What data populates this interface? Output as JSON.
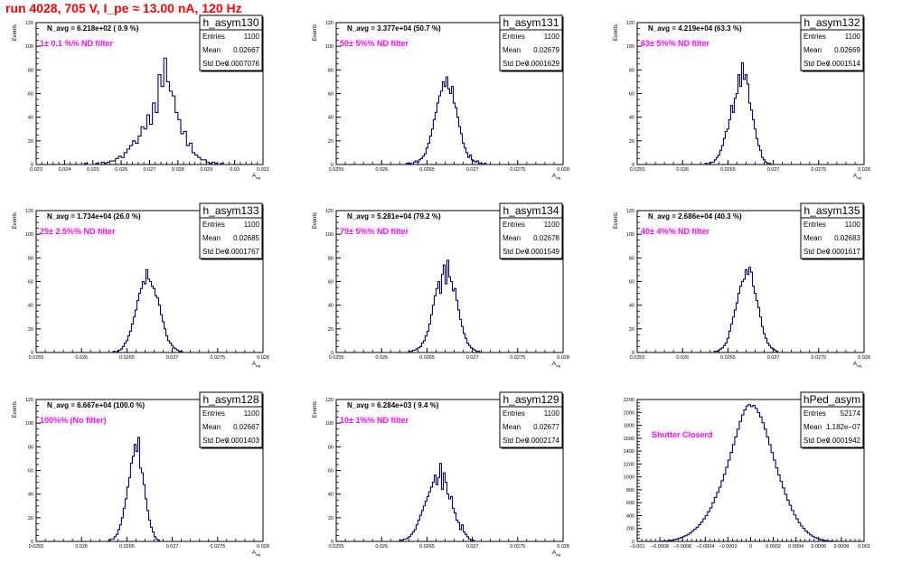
{
  "page_title": "run 4028,   705 V, I_pe ≈ 13.00 nA, 120 Hz",
  "colors": {
    "title": "#ff0000",
    "annotation": "#ff00ff",
    "histogram": "#000080",
    "axis": "#000000"
  },
  "stats_labels": {
    "entries": "Entries",
    "mean": "Mean",
    "std": "Std Dev"
  },
  "chart_data": [
    {
      "type": "histogram",
      "name": "h_asym130",
      "ylabel": "Events",
      "xlabel": "A_{sig}",
      "avg_text": "N_avg = 6.218e+02 ( 0.9 %)",
      "note": "1± 0.1 %% ND filter",
      "entries": "1100",
      "mean": "0.02667",
      "std_dev": "0.0007076",
      "xlim": [
        0.023,
        0.031
      ],
      "ylim": [
        0,
        120
      ],
      "xticks": [
        0.023,
        0.024,
        0.025,
        0.026,
        0.027,
        0.028,
        0.029,
        0.03,
        0.031
      ],
      "xtick_labels": [
        "0.023",
        "0.024",
        "0.025",
        "0.026",
        "0.027",
        "0.028",
        "0.029",
        "0.03",
        "0.031"
      ],
      "yticks": [
        0,
        20,
        40,
        60,
        80,
        100,
        120
      ],
      "ytick_labels": [
        "0",
        "20",
        "40",
        "60",
        "80",
        "100",
        "120"
      ],
      "bin_min": 0.0245,
      "bin_width": 0.0001,
      "counts": [
        0,
        0,
        1,
        0,
        0,
        0,
        1,
        0,
        2,
        1,
        2,
        3,
        3,
        5,
        7,
        6,
        10,
        13,
        16,
        20,
        18,
        24,
        32,
        30,
        42,
        34,
        52,
        44,
        76,
        66,
        90,
        70,
        62,
        58,
        44,
        38,
        26,
        28,
        16,
        18,
        10,
        8,
        6,
        4,
        4,
        2,
        1,
        2,
        1,
        0,
        1
      ]
    },
    {
      "type": "histogram",
      "name": "h_asym131",
      "ylabel": "Events",
      "xlabel": "A_{sig}",
      "avg_text": "N_avg = 3.377e+04 (50.7 %)",
      "note": "50± 5%% ND filter",
      "entries": "1100",
      "mean": "0.02679",
      "std_dev": "0.0001629",
      "xlim": [
        0.0255,
        0.028
      ],
      "ylim": [
        0,
        120
      ],
      "xticks": [
        0.0255,
        0.026,
        0.0265,
        0.027,
        0.0275,
        0.028
      ],
      "xtick_labels": [
        "0.0255",
        "0.026",
        "0.0265",
        "0.027",
        "0.0275",
        "0.028"
      ],
      "yticks": [
        0,
        20,
        40,
        60,
        80,
        100,
        120
      ],
      "ytick_labels": [
        "0",
        "20",
        "40",
        "60",
        "80",
        "100",
        "120"
      ],
      "bin_min": 0.02625,
      "bin_width": 2e-05,
      "counts": [
        0,
        1,
        0,
        1,
        0,
        2,
        3,
        2,
        4,
        5,
        7,
        9,
        14,
        18,
        24,
        30,
        38,
        44,
        52,
        58,
        62,
        70,
        66,
        74,
        64,
        60,
        66,
        52,
        48,
        40,
        32,
        26,
        18,
        14,
        10,
        6,
        8,
        4,
        3,
        2,
        3,
        1,
        1,
        0,
        1
      ]
    },
    {
      "type": "histogram",
      "name": "h_asym132",
      "ylabel": "Events",
      "xlabel": "A_{sig}",
      "avg_text": "N_avg = 4.219e+04 (63.3 %)",
      "note": "63± 5%% ND filter",
      "entries": "1100",
      "mean": "0.02669",
      "std_dev": "0.0001514",
      "xlim": [
        0.0255,
        0.028
      ],
      "ylim": [
        0,
        120
      ],
      "xticks": [
        0.0255,
        0.026,
        0.0265,
        0.027,
        0.0275,
        0.028
      ],
      "xtick_labels": [
        "0.0255",
        "0.026",
        "0.0265",
        "0.027",
        "0.0275",
        "0.028"
      ],
      "yticks": [
        0,
        20,
        40,
        60,
        80,
        100,
        120
      ],
      "ytick_labels": [
        "0",
        "20",
        "40",
        "60",
        "80",
        "100",
        "120"
      ],
      "bin_min": 0.02625,
      "bin_width": 2e-05,
      "counts": [
        1,
        0,
        1,
        2,
        2,
        4,
        6,
        8,
        12,
        16,
        22,
        28,
        30,
        38,
        50,
        44,
        56,
        60,
        76,
        66,
        86,
        72,
        76,
        68,
        52,
        46,
        38,
        30,
        22,
        16,
        12,
        6,
        4,
        2,
        1,
        1
      ]
    },
    {
      "type": "histogram",
      "name": "h_asym133",
      "ylabel": "Events",
      "xlabel": "A_{sig}",
      "avg_text": "N_avg = 1.734e+04 (26.0 %)",
      "note": "25± 2.5%% ND filter",
      "entries": "1100",
      "mean": "0.02685",
      "std_dev": "0.0001767",
      "xlim": [
        0.0255,
        0.028
      ],
      "ylim": [
        0,
        120
      ],
      "xticks": [
        0.0255,
        0.026,
        0.0265,
        0.027,
        0.0275,
        0.028
      ],
      "xtick_labels": [
        "0.0255",
        "0.026",
        "0.0265",
        "0.027",
        "0.0275",
        "0.028"
      ],
      "yticks": [
        0,
        20,
        40,
        60,
        80,
        100,
        120
      ],
      "ytick_labels": [
        "0",
        "20",
        "40",
        "60",
        "80",
        "100",
        "120"
      ],
      "bin_min": 0.02635,
      "bin_width": 2e-05,
      "counts": [
        1,
        0,
        1,
        2,
        3,
        5,
        8,
        10,
        14,
        18,
        24,
        30,
        36,
        44,
        50,
        54,
        60,
        58,
        70,
        62,
        60,
        56,
        54,
        48,
        46,
        40,
        32,
        26,
        20,
        14,
        10,
        8,
        6,
        4,
        3,
        2,
        1,
        1
      ]
    },
    {
      "type": "histogram",
      "name": "h_asym134",
      "ylabel": "Events",
      "xlabel": "A_{sig}",
      "avg_text": "N_avg = 5.281e+04 (79.2 %)",
      "note": "79± 5%% ND filter",
      "entries": "1100",
      "mean": "0.02678",
      "std_dev": "0.0001549",
      "xlim": [
        0.0255,
        0.028
      ],
      "ylim": [
        0,
        120
      ],
      "xticks": [
        0.0255,
        0.026,
        0.0265,
        0.027,
        0.0275,
        0.028
      ],
      "xtick_labels": [
        "0.0255",
        "0.026",
        "0.0265",
        "0.027",
        "0.0275",
        "0.028"
      ],
      "yticks": [
        0,
        20,
        40,
        60,
        80,
        100,
        120
      ],
      "ytick_labels": [
        "0",
        "20",
        "40",
        "60",
        "80",
        "100",
        "120"
      ],
      "bin_min": 0.0263,
      "bin_width": 2e-05,
      "counts": [
        1,
        1,
        2,
        2,
        3,
        4,
        5,
        8,
        10,
        14,
        18,
        24,
        32,
        40,
        48,
        54,
        60,
        50,
        66,
        74,
        58,
        78,
        64,
        60,
        52,
        54,
        44,
        36,
        28,
        22,
        16,
        12,
        8,
        6,
        4,
        3,
        2,
        1,
        1
      ]
    },
    {
      "type": "histogram",
      "name": "h_asym135",
      "ylabel": "Events",
      "xlabel": "A_{sig}",
      "avg_text": "N_avg = 2.686e+04 (40.3 %)",
      "note": "40± 4%% ND filter",
      "entries": "1100",
      "mean": "0.02683",
      "std_dev": "0.0001617",
      "xlim": [
        0.0255,
        0.028
      ],
      "ylim": [
        0,
        120
      ],
      "xticks": [
        0.0255,
        0.026,
        0.0265,
        0.027,
        0.0275,
        0.028
      ],
      "xtick_labels": [
        "0.0255",
        "0.026",
        "0.0265",
        "0.027",
        "0.0275",
        "0.028"
      ],
      "yticks": [
        0,
        20,
        40,
        60,
        80,
        100,
        120
      ],
      "ytick_labels": [
        "0",
        "20",
        "40",
        "60",
        "80",
        "100",
        "120"
      ],
      "bin_min": 0.02635,
      "bin_width": 2e-05,
      "counts": [
        1,
        1,
        2,
        3,
        4,
        6,
        8,
        12,
        18,
        24,
        30,
        36,
        42,
        50,
        56,
        60,
        62,
        70,
        66,
        72,
        68,
        56,
        50,
        44,
        38,
        30,
        22,
        16,
        12,
        8,
        6,
        4,
        3,
        2,
        1
      ]
    },
    {
      "type": "histogram",
      "name": "h_asym128",
      "ylabel": "Events",
      "xlabel": "A_{sig}",
      "avg_text": "N_avg = 6.667e+04 (100.0 %)",
      "note": "100%% (No filter)",
      "entries": "1100",
      "mean": "0.02667",
      "std_dev": "0.0001403",
      "xlim": [
        0.0255,
        0.028
      ],
      "ylim": [
        0,
        120
      ],
      "xticks": [
        0.0255,
        0.026,
        0.0265,
        0.027,
        0.0275,
        0.028
      ],
      "xtick_labels": [
        "0.0255",
        "0.026",
        "0.0265",
        "0.027",
        "0.0275",
        "0.028"
      ],
      "yticks": [
        0,
        20,
        40,
        60,
        80,
        100,
        120
      ],
      "ytick_labels": [
        "0",
        "20",
        "40",
        "60",
        "80",
        "100",
        "120"
      ],
      "bin_min": 0.0263,
      "bin_width": 2e-05,
      "counts": [
        1,
        2,
        2,
        4,
        6,
        10,
        14,
        20,
        28,
        36,
        46,
        54,
        66,
        72,
        82,
        76,
        88,
        62,
        58,
        48,
        36,
        26,
        18,
        12,
        8,
        4,
        2,
        1
      ]
    },
    {
      "type": "histogram",
      "name": "h_asym129",
      "ylabel": "Events",
      "xlabel": "A_{sig}",
      "avg_text": "N_avg = 6.284e+03 ( 9.4 %)",
      "note": "10± 1%% ND filter",
      "entries": "1100",
      "mean": "0.02677",
      "std_dev": "0.0002174",
      "xlim": [
        0.0255,
        0.028
      ],
      "ylim": [
        0,
        120
      ],
      "xticks": [
        0.0255,
        0.026,
        0.0265,
        0.027,
        0.0275,
        0.028
      ],
      "xtick_labels": [
        "0.0255",
        "0.026",
        "0.0265",
        "0.027",
        "0.0275",
        "0.028"
      ],
      "yticks": [
        0,
        20,
        40,
        60,
        80,
        100,
        120
      ],
      "ytick_labels": [
        "0",
        "20",
        "40",
        "60",
        "80",
        "100",
        "120"
      ],
      "bin_min": 0.0262,
      "bin_width": 2e-05,
      "counts": [
        1,
        1,
        2,
        2,
        3,
        4,
        6,
        8,
        10,
        14,
        18,
        22,
        26,
        30,
        34,
        38,
        42,
        46,
        50,
        56,
        48,
        54,
        66,
        44,
        58,
        50,
        40,
        36,
        38,
        28,
        24,
        18,
        16,
        10,
        14,
        8,
        6,
        4,
        2,
        1,
        1
      ]
    },
    {
      "type": "histogram",
      "name": "hPed_asym",
      "ylabel": "",
      "xlabel": "",
      "avg_text": "",
      "note": "Shutter Closerd",
      "entries": "52174",
      "mean": "1.182e−07",
      "std_dev": "0.0001942",
      "xlim": [
        -0.001,
        0.001
      ],
      "ylim": [
        0,
        2200
      ],
      "xticks": [
        -0.001,
        -0.0008,
        -0.0006,
        -0.0004,
        -0.0002,
        0,
        0.0002,
        0.0004,
        0.0006,
        0.0008,
        0.001
      ],
      "xtick_labels": [
        "−0.001",
        "−0.0008",
        "−0.0006",
        "−0.0004",
        "−0.0002",
        "0",
        "0.0002",
        "0.0004",
        "0.0006",
        "0.0008",
        "0.001"
      ],
      "yticks": [
        0,
        200,
        400,
        600,
        800,
        1000,
        1200,
        1400,
        1600,
        1800,
        2000,
        2200
      ],
      "ytick_labels": [
        "0",
        "200",
        "400",
        "600",
        "800",
        "1000",
        "1200",
        "1400",
        "1600",
        "1800",
        "2000",
        "2200"
      ],
      "bin_min": -0.0008,
      "bin_width": 2e-05,
      "counts": [
        2,
        4,
        6,
        10,
        14,
        20,
        28,
        36,
        46,
        60,
        74,
        90,
        110,
        130,
        160,
        190,
        220,
        260,
        300,
        350,
        400,
        460,
        520,
        600,
        680,
        760,
        840,
        940,
        1040,
        1150,
        1260,
        1380,
        1500,
        1620,
        1740,
        1860,
        1960,
        2040,
        2100,
        2120,
        2090,
        2110,
        2060,
        2000,
        1930,
        1840,
        1740,
        1620,
        1500,
        1380,
        1260,
        1140,
        1030,
        930,
        830,
        730,
        640,
        560,
        480,
        410,
        350,
        290,
        240,
        200,
        160,
        130,
        100,
        80,
        60,
        46,
        34,
        24,
        16,
        10,
        6,
        4,
        2
      ]
    }
  ]
}
